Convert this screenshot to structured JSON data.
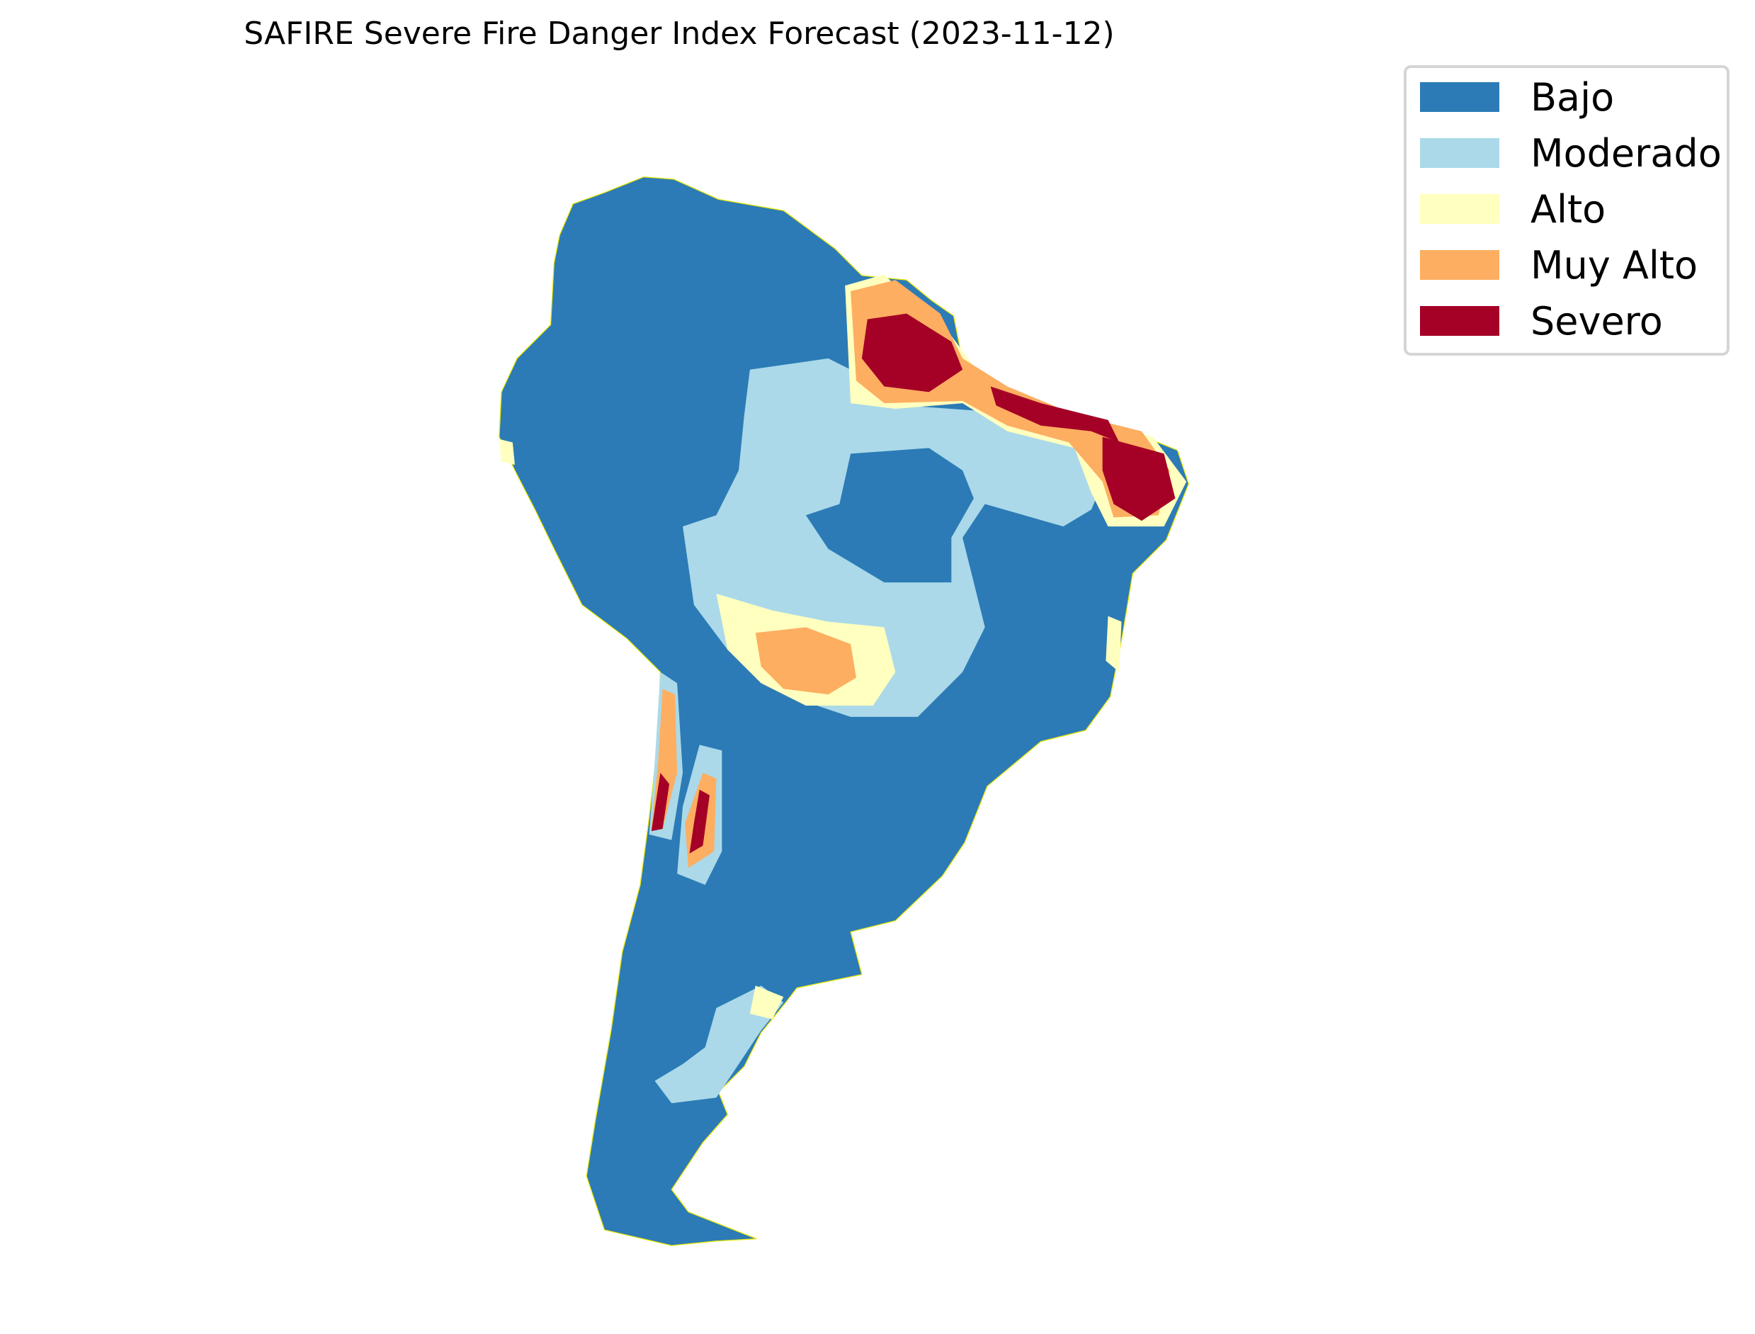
{
  "chart_data": {
    "type": "heatmap",
    "title": "SAFIRE Severe Fire Danger Index Forecast (2023-11-12)",
    "xlabel": "",
    "ylabel": "",
    "grid": false,
    "legend_position": "top-right",
    "region": "South America",
    "categories": [
      "Bajo",
      "Moderado",
      "Alto",
      "Muy Alto",
      "Severo"
    ],
    "colors": [
      "#2c7bb6",
      "#abd9e9",
      "#ffffbf",
      "#fdae61",
      "#a50026"
    ],
    "border_color": "#e8e800"
  },
  "legend": {
    "items": [
      {
        "label": "Bajo",
        "color": "#2c7bb6"
      },
      {
        "label": "Moderado",
        "color": "#abd9e9"
      },
      {
        "label": "Alto",
        "color": "#ffffbf"
      },
      {
        "label": "Muy Alto",
        "color": "#fdae61"
      },
      {
        "label": "Severo",
        "color": "#a50026"
      }
    ]
  }
}
